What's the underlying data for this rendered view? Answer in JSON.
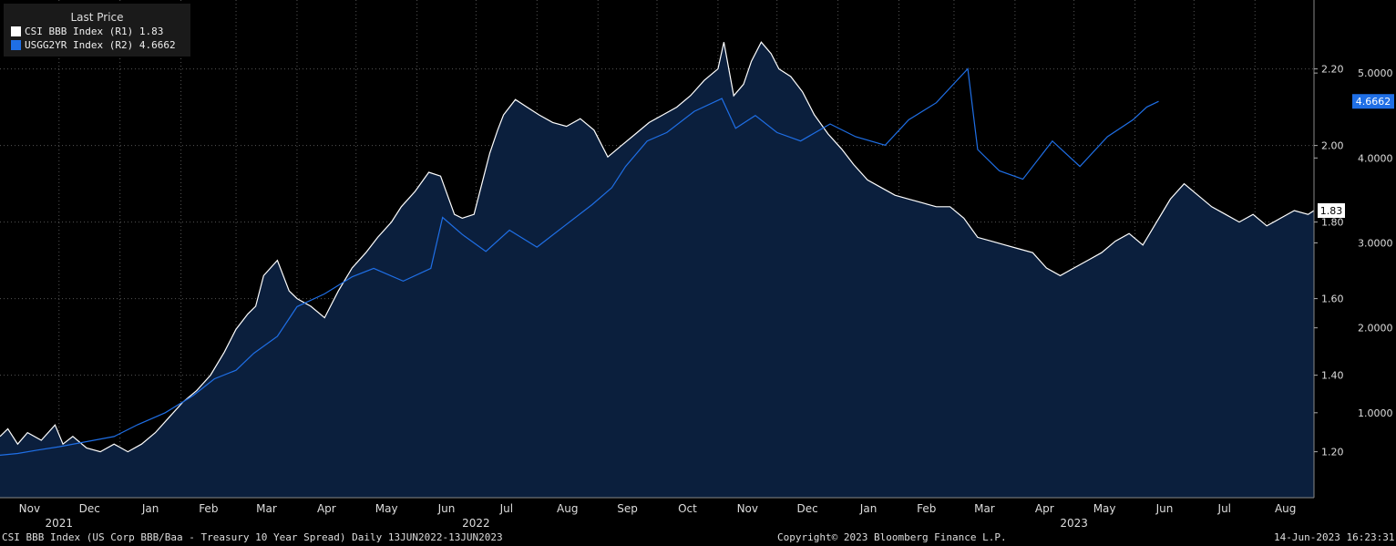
{
  "legend": {
    "header": "Last Price",
    "series": [
      {
        "name": "CSI BBB Index",
        "axis": "(R1)",
        "last": "1.83",
        "color": "#ffffff"
      },
      {
        "name": "USGG2YR Index",
        "axis": "(R2)",
        "last": "4.6662",
        "color": "#1f6fe6"
      }
    ]
  },
  "footer": {
    "description": "CSI BBB Index (US Corp BBB/Baa - Treasury 10 Year Spread)  Daily 13JUN2022-13JUN2023",
    "copyright": "Copyright© 2023 Bloomberg Finance L.P.",
    "timestamp": "14-Jun-2023 16:23:31"
  },
  "chart_data": {
    "type": "line",
    "x_month_labels": [
      "Nov",
      "Dec",
      "Jan",
      "Feb",
      "Mar",
      "Apr",
      "May",
      "Jun",
      "Jul",
      "Aug",
      "Sep",
      "Oct",
      "Nov",
      "Dec",
      "Jan",
      "Feb",
      "Mar",
      "Apr",
      "May",
      "Jun",
      "Jul",
      "Aug"
    ],
    "x_year_labels": [
      {
        "label": "2021",
        "month": "Dec 2021"
      },
      {
        "label": "2022",
        "month": "Jul 2022"
      },
      {
        "label": "2023",
        "month": "May 2023"
      }
    ],
    "x_range": [
      "2021-11-01",
      "2023-08-31"
    ],
    "r1_axis": {
      "ticks": [
        "1.20",
        "1.40",
        "1.60",
        "1.80",
        "2.00",
        "2.20"
      ],
      "ylim": [
        1.08,
        2.38
      ]
    },
    "r2_axis": {
      "ticks": [
        "1.0000",
        "2.0000",
        "3.0000",
        "4.0000",
        "5.0000"
      ],
      "ylim": [
        0.0,
        5.86
      ]
    },
    "last_value_tags": [
      {
        "series": "CSI BBB Index",
        "value": 1.83,
        "label": "1.83",
        "bg": "#ffffff",
        "fg": "#000000"
      },
      {
        "series": "USGG2YR Index",
        "value": 4.6662,
        "label": "4.6662",
        "bg": "#1f6fe6",
        "fg": "#ffffff"
      }
    ],
    "series": [
      {
        "name": "CSI BBB Index",
        "axis": "R1",
        "style": "area",
        "line_color": "#ffffff",
        "fill_color": "#0b1f3d",
        "points": [
          [
            "2021-11-01",
            1.24
          ],
          [
            "2021-11-05",
            1.26
          ],
          [
            "2021-11-10",
            1.22
          ],
          [
            "2021-11-15",
            1.25
          ],
          [
            "2021-11-22",
            1.23
          ],
          [
            "2021-11-29",
            1.27
          ],
          [
            "2021-12-03",
            1.22
          ],
          [
            "2021-12-08",
            1.24
          ],
          [
            "2021-12-15",
            1.21
          ],
          [
            "2021-12-22",
            1.2
          ],
          [
            "2021-12-29",
            1.22
          ],
          [
            "2022-01-05",
            1.2
          ],
          [
            "2022-01-12",
            1.22
          ],
          [
            "2022-01-19",
            1.25
          ],
          [
            "2022-01-26",
            1.29
          ],
          [
            "2022-02-02",
            1.33
          ],
          [
            "2022-02-09",
            1.36
          ],
          [
            "2022-02-16",
            1.4
          ],
          [
            "2022-02-23",
            1.46
          ],
          [
            "2022-03-01",
            1.52
          ],
          [
            "2022-03-07",
            1.56
          ],
          [
            "2022-03-11",
            1.58
          ],
          [
            "2022-03-15",
            1.66
          ],
          [
            "2022-03-22",
            1.7
          ],
          [
            "2022-03-28",
            1.62
          ],
          [
            "2022-04-01",
            1.6
          ],
          [
            "2022-04-08",
            1.58
          ],
          [
            "2022-04-15",
            1.55
          ],
          [
            "2022-04-22",
            1.62
          ],
          [
            "2022-04-29",
            1.68
          ],
          [
            "2022-05-06",
            1.72
          ],
          [
            "2022-05-12",
            1.76
          ],
          [
            "2022-05-19",
            1.8
          ],
          [
            "2022-05-24",
            1.84
          ],
          [
            "2022-05-31",
            1.88
          ],
          [
            "2022-06-07",
            1.93
          ],
          [
            "2022-06-13",
            1.92
          ],
          [
            "2022-06-20",
            1.82
          ],
          [
            "2022-06-24",
            1.81
          ],
          [
            "2022-06-30",
            1.82
          ],
          [
            "2022-07-05",
            1.92
          ],
          [
            "2022-07-08",
            1.98
          ],
          [
            "2022-07-12",
            2.04
          ],
          [
            "2022-07-15",
            2.08
          ],
          [
            "2022-07-21",
            2.12
          ],
          [
            "2022-07-27",
            2.1
          ],
          [
            "2022-08-02",
            2.08
          ],
          [
            "2022-08-09",
            2.06
          ],
          [
            "2022-08-16",
            2.05
          ],
          [
            "2022-08-23",
            2.07
          ],
          [
            "2022-08-30",
            2.04
          ],
          [
            "2022-09-06",
            1.97
          ],
          [
            "2022-09-13",
            2.0
          ],
          [
            "2022-09-20",
            2.03
          ],
          [
            "2022-09-27",
            2.06
          ],
          [
            "2022-10-04",
            2.08
          ],
          [
            "2022-10-11",
            2.1
          ],
          [
            "2022-10-18",
            2.13
          ],
          [
            "2022-10-25",
            2.17
          ],
          [
            "2022-11-01",
            2.2
          ],
          [
            "2022-11-04",
            2.27
          ],
          [
            "2022-11-09",
            2.13
          ],
          [
            "2022-11-14",
            2.16
          ],
          [
            "2022-11-18",
            2.22
          ],
          [
            "2022-11-23",
            2.27
          ],
          [
            "2022-11-28",
            2.24
          ],
          [
            "2022-12-02",
            2.2
          ],
          [
            "2022-12-08",
            2.18
          ],
          [
            "2022-12-14",
            2.14
          ],
          [
            "2022-12-20",
            2.08
          ],
          [
            "2022-12-27",
            2.03
          ],
          [
            "2023-01-03",
            1.99
          ],
          [
            "2023-01-09",
            1.95
          ],
          [
            "2023-01-16",
            1.91
          ],
          [
            "2023-01-23",
            1.89
          ],
          [
            "2023-01-30",
            1.87
          ],
          [
            "2023-02-06",
            1.86
          ],
          [
            "2023-02-13",
            1.85
          ],
          [
            "2023-02-20",
            1.84
          ],
          [
            "2023-02-27",
            1.84
          ],
          [
            "2023-03-06",
            1.81
          ],
          [
            "2023-03-13",
            1.76
          ],
          [
            "2023-03-20",
            1.75
          ],
          [
            "2023-03-27",
            1.74
          ],
          [
            "2023-04-03",
            1.73
          ],
          [
            "2023-04-10",
            1.72
          ],
          [
            "2023-04-17",
            1.68
          ],
          [
            "2023-04-24",
            1.66
          ],
          [
            "2023-05-01",
            1.68
          ],
          [
            "2023-05-08",
            1.7
          ],
          [
            "2023-05-15",
            1.72
          ],
          [
            "2023-05-22",
            1.75
          ],
          [
            "2023-05-29",
            1.77
          ],
          [
            "2023-06-05",
            1.74
          ],
          [
            "2023-06-12",
            1.8
          ],
          [
            "2023-06-19",
            1.86
          ],
          [
            "2023-06-26",
            1.9
          ],
          [
            "2023-07-03",
            1.87
          ],
          [
            "2023-07-10",
            1.84
          ],
          [
            "2023-07-17",
            1.82
          ],
          [
            "2023-07-24",
            1.8
          ],
          [
            "2023-07-31",
            1.82
          ],
          [
            "2023-08-07",
            1.79
          ],
          [
            "2023-08-14",
            1.81
          ],
          [
            "2023-08-21",
            1.83
          ],
          [
            "2023-08-28",
            1.82
          ],
          [
            "2023-08-31",
            1.83
          ]
        ]
      },
      {
        "name": "USGG2YR Index",
        "axis": "R2",
        "style": "line",
        "line_color": "#1f6fe6",
        "points": [
          [
            "2021-11-01",
            0.5
          ],
          [
            "2021-11-10",
            0.52
          ],
          [
            "2021-11-20",
            0.56
          ],
          [
            "2021-12-01",
            0.6
          ],
          [
            "2021-12-15",
            0.66
          ],
          [
            "2021-12-29",
            0.72
          ],
          [
            "2022-01-10",
            0.86
          ],
          [
            "2022-01-24",
            1.0
          ],
          [
            "2022-02-07",
            1.2
          ],
          [
            "2022-02-18",
            1.4
          ],
          [
            "2022-03-01",
            1.5
          ],
          [
            "2022-03-10",
            1.7
          ],
          [
            "2022-03-22",
            1.9
          ],
          [
            "2022-04-01",
            2.25
          ],
          [
            "2022-04-15",
            2.4
          ],
          [
            "2022-04-29",
            2.6
          ],
          [
            "2022-05-10",
            2.7
          ],
          [
            "2022-05-25",
            2.55
          ],
          [
            "2022-06-08",
            2.7
          ],
          [
            "2022-06-14",
            3.3
          ],
          [
            "2022-06-24",
            3.1
          ],
          [
            "2022-07-06",
            2.9
          ],
          [
            "2022-07-18",
            3.15
          ],
          [
            "2022-08-01",
            2.95
          ],
          [
            "2022-08-15",
            3.2
          ],
          [
            "2022-08-29",
            3.45
          ],
          [
            "2022-09-08",
            3.65
          ],
          [
            "2022-09-15",
            3.9
          ],
          [
            "2022-09-26",
            4.2
          ],
          [
            "2022-10-06",
            4.3
          ],
          [
            "2022-10-20",
            4.55
          ],
          [
            "2022-11-03",
            4.7
          ],
          [
            "2022-11-10",
            4.35
          ],
          [
            "2022-11-20",
            4.5
          ],
          [
            "2022-12-01",
            4.3
          ],
          [
            "2022-12-13",
            4.2
          ],
          [
            "2022-12-28",
            4.4
          ],
          [
            "2023-01-10",
            4.25
          ],
          [
            "2023-01-25",
            4.15
          ],
          [
            "2023-02-06",
            4.45
          ],
          [
            "2023-02-20",
            4.65
          ],
          [
            "2023-03-02",
            4.9
          ],
          [
            "2023-03-08",
            5.05
          ],
          [
            "2023-03-13",
            4.1
          ],
          [
            "2023-03-24",
            3.85
          ],
          [
            "2023-04-05",
            3.75
          ],
          [
            "2023-04-20",
            4.2
          ],
          [
            "2023-05-04",
            3.9
          ],
          [
            "2023-05-18",
            4.25
          ],
          [
            "2023-05-31",
            4.45
          ],
          [
            "2023-06-07",
            4.6
          ],
          [
            "2023-06-13",
            4.6662
          ]
        ]
      }
    ],
    "grid": true,
    "legend_position": "top-left"
  }
}
